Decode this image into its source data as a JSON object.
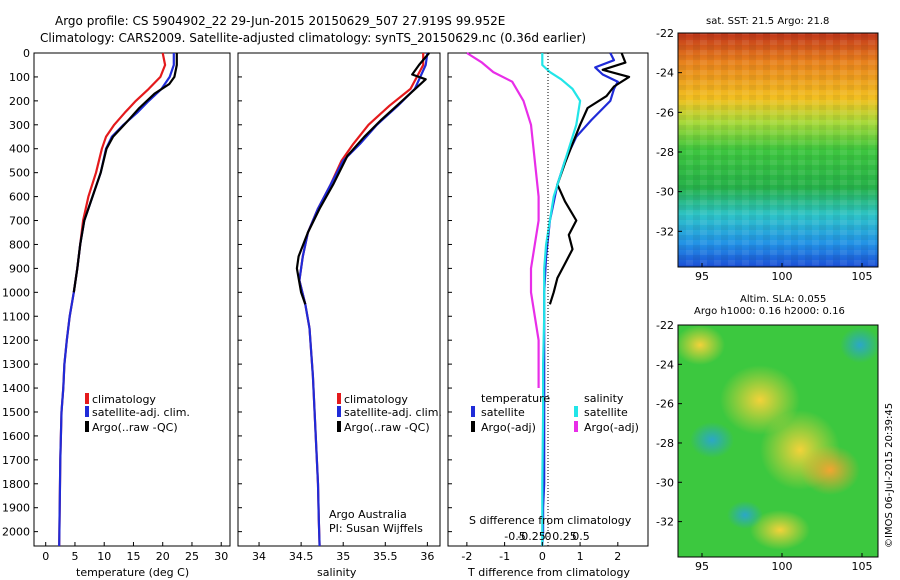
{
  "header": {
    "line1": "Argo profile: CS 5904902_22 29-Jun-2015 20150629_507 27.919S 99.952E",
    "line2": "Climatology: CARS2009. Satellite-adjusted climatology: synTS_20150629.nc (0.36d earlier)"
  },
  "colors": {
    "climatology": "#e41a1c",
    "satellite": "#1f2bd8",
    "argo": "#000000",
    "salinity_satellite": "#22e5e8",
    "salinity_argo": "#e82ee8"
  },
  "depth_axis": {
    "ticks": [
      "0",
      "100",
      "200",
      "300",
      "400",
      "500",
      "600",
      "700",
      "800",
      "900",
      "1000",
      "1100",
      "1200",
      "1300",
      "1400",
      "1500",
      "1600",
      "1700",
      "1800",
      "1900",
      "2000"
    ],
    "ylim": [
      0,
      2060
    ]
  },
  "chart_data": [
    {
      "type": "line",
      "id": "temperature",
      "xlabel": "temperature (deg C)",
      "xlim": [
        -2,
        31.5
      ],
      "xticks": [
        "0",
        "5",
        "10",
        "15",
        "20",
        "25",
        "30"
      ],
      "legend": [
        "climatology",
        "satellite-adj. clim.",
        "Argo(..raw -QC)"
      ],
      "series": [
        {
          "name": "climatology",
          "x": [
            20.0,
            20.4,
            19.6,
            17.6,
            15.4,
            13.5,
            11.7,
            10.3,
            9.6,
            8.6,
            7.3,
            6.4,
            5.9,
            5.4,
            4.8,
            4.1,
            3.6,
            3.2,
            3.0,
            2.7,
            2.5,
            2.4,
            2.3
          ],
          "depth": [
            0,
            50,
            100,
            150,
            200,
            250,
            300,
            350,
            400,
            500,
            600,
            700,
            800,
            900,
            1000,
            1100,
            1200,
            1300,
            1400,
            1500,
            1700,
            1900,
            2060
          ]
        },
        {
          "name": "satellite-adj. clim.",
          "x": [
            21.9,
            21.9,
            21.2,
            19.8,
            17.6,
            15.6,
            13.3,
            11.3,
            10.3,
            9.4,
            8.0,
            6.6,
            5.9,
            5.4,
            4.8,
            4.1,
            3.6,
            3.2,
            3.0,
            2.7,
            2.5,
            2.4,
            2.3
          ],
          "depth": [
            0,
            50,
            100,
            150,
            200,
            250,
            300,
            350,
            400,
            500,
            600,
            700,
            800,
            900,
            1000,
            1100,
            1200,
            1300,
            1400,
            1500,
            1700,
            1900,
            2060
          ]
        },
        {
          "name": "Argo(..raw -QC)",
          "x": [
            22.4,
            22.4,
            22.0,
            21.1,
            18.6,
            16.0,
            13.8,
            11.5,
            10.4,
            9.4,
            8.0,
            6.6,
            5.9,
            5.4,
            4.8
          ],
          "depth": [
            0,
            50,
            100,
            130,
            170,
            230,
            290,
            350,
            400,
            500,
            600,
            700,
            800,
            900,
            1000
          ]
        }
      ]
    },
    {
      "type": "line",
      "id": "salinity",
      "xlabel": "salinity",
      "xlim": [
        33.75,
        36.15
      ],
      "xticks": [
        "34",
        "34.5",
        "35",
        "35.5",
        "36"
      ],
      "legend": [
        "climatology",
        "satellite-adj. clim.",
        "Argo(..raw -QC)"
      ],
      "annotation": [
        "Argo Australia",
        "PI: Susan Wijffels"
      ],
      "series": [
        {
          "name": "climatology",
          "x": [
            35.95,
            35.95,
            35.8,
            35.55,
            35.3,
            35.12,
            34.98,
            34.85,
            34.7,
            34.58,
            34.52,
            34.48,
            34.55,
            34.6,
            34.62,
            34.64,
            34.66,
            34.68,
            34.7,
            34.71,
            34.72
          ],
          "depth": [
            0,
            50,
            150,
            220,
            300,
            380,
            450,
            550,
            650,
            750,
            850,
            950,
            1050,
            1150,
            1250,
            1350,
            1500,
            1650,
            1800,
            1950,
            2060
          ]
        },
        {
          "name": "satellite-adj. clim.",
          "x": [
            36.0,
            35.98,
            35.85,
            35.65,
            35.4,
            35.2,
            35.0,
            34.85,
            34.7,
            34.58,
            34.52,
            34.48,
            34.55,
            34.6,
            34.62,
            34.64,
            34.66,
            34.68,
            34.7,
            34.71,
            34.72
          ],
          "depth": [
            0,
            50,
            150,
            220,
            300,
            380,
            450,
            550,
            650,
            750,
            850,
            950,
            1050,
            1150,
            1250,
            1350,
            1500,
            1650,
            1800,
            1950,
            2060
          ]
        },
        {
          "name": "Argo(..raw -QC)",
          "x": [
            36.02,
            35.9,
            35.82,
            35.98,
            35.7,
            35.45,
            35.25,
            35.05,
            34.88,
            34.72,
            34.58,
            34.47,
            34.45,
            34.5,
            34.55
          ],
          "depth": [
            0,
            50,
            90,
            110,
            200,
            280,
            350,
            430,
            550,
            650,
            750,
            850,
            900,
            1000,
            1050
          ]
        }
      ]
    },
    {
      "type": "line",
      "id": "difference",
      "xlabel": "T difference from climatology",
      "xlabel_top": "S difference from climatology",
      "xlim": [
        -2.5,
        2.8
      ],
      "xticks": [
        "-2",
        "-1",
        "0",
        "1",
        "2"
      ],
      "xticks_s": [
        "-0.5",
        "-0.25",
        "0",
        "0.25",
        "0.5"
      ],
      "legend_header": [
        "temperature",
        "salinity"
      ],
      "legend": [
        "satellite",
        "Argo(-adj)",
        "satellite",
        "Argo(-adj)"
      ],
      "series": [
        {
          "name": "temperature satellite",
          "x": [
            1.8,
            1.9,
            1.4,
            1.6,
            2.0,
            1.9,
            1.8,
            1.3,
            0.9,
            0.6,
            0.4,
            0.2,
            0.1,
            0.05,
            0.05,
            0.05,
            0.05,
            0.05,
            0.02,
            0.02,
            0.0
          ],
          "depth": [
            0,
            30,
            60,
            90,
            120,
            150,
            200,
            280,
            350,
            450,
            550,
            700,
            850,
            1000,
            1200,
            1400,
            1600,
            1800,
            1900,
            2000,
            2060
          ]
        },
        {
          "name": "temperature Argo(-adj)",
          "x": [
            2.1,
            2.2,
            1.6,
            2.3,
            1.9,
            1.7,
            1.2,
            1.0,
            0.8,
            0.6,
            0.4,
            0.6,
            0.9,
            0.7,
            0.8,
            0.6,
            0.4,
            0.3,
            0.2
          ],
          "depth": [
            0,
            40,
            70,
            100,
            140,
            180,
            230,
            300,
            380,
            460,
            550,
            620,
            700,
            760,
            820,
            880,
            940,
            1000,
            1050
          ]
        },
        {
          "name": "salinity satellite",
          "x": [
            0.0,
            0.0,
            0.2,
            0.5,
            0.8,
            1.0,
            0.9,
            0.7,
            0.5,
            0.3,
            0.2,
            0.1,
            0.05,
            0.05,
            0.02,
            0.02,
            0.0,
            0.0
          ],
          "depth": [
            0,
            50,
            80,
            110,
            150,
            200,
            300,
            400,
            500,
            600,
            700,
            800,
            900,
            1100,
            1300,
            1500,
            1800,
            2060
          ]
        },
        {
          "name": "salinity Argo(-adj)",
          "x": [
            -2.0,
            -1.6,
            -1.3,
            -0.8,
            -0.5,
            -0.3,
            -0.2,
            -0.1,
            -0.1,
            -0.2,
            -0.3,
            -0.3,
            -0.2,
            -0.1,
            -0.1,
            -0.1
          ],
          "depth": [
            0,
            40,
            80,
            120,
            200,
            300,
            450,
            600,
            700,
            800,
            900,
            1000,
            1100,
            1200,
            1300,
            1400
          ]
        }
      ]
    },
    {
      "type": "heatmap",
      "id": "sst",
      "title": "sat. SST: 21.5  Argo: 21.8",
      "xticks": [
        "95",
        "100",
        "105"
      ],
      "yticks": [
        "-22",
        "-24",
        "-26",
        "-28",
        "-30",
        "-32"
      ]
    },
    {
      "type": "heatmap",
      "id": "sla",
      "title": "Altim. SLA: 0.055",
      "subtitle": "Argo h1000: 0.16  h2000: 0.16",
      "xticks": [
        "95",
        "100",
        "105"
      ],
      "yticks": [
        "-22",
        "-24",
        "-26",
        "-28",
        "-30",
        "-32"
      ]
    }
  ],
  "footer_stamp": "©IMOS 06-Jul-2015 20:39:45"
}
